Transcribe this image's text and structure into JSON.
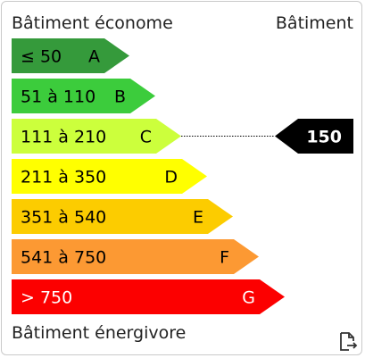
{
  "header": {
    "title": "Bâtiment économe",
    "column_title": "Bâtiment"
  },
  "footer": {
    "label": "Bâtiment énergivore"
  },
  "chart_data": {
    "type": "bar",
    "title": "Bâtiment économe",
    "categories": [
      "≤ 50",
      "51 à 110",
      "111 à 210",
      "211 à 350",
      "351 à 540",
      "541 à 750",
      "> 750"
    ],
    "classes": [
      "A",
      "B",
      "C",
      "D",
      "E",
      "F",
      "G"
    ],
    "colors": [
      "#359a3b",
      "#3ccc3c",
      "#ccff3c",
      "#ffff00",
      "#fccc00",
      "#fc9933",
      "#fc0000"
    ],
    "label_colors": [
      "#000000",
      "#000000",
      "#000000",
      "#000000",
      "#000000",
      "#000000",
      "#ffffff"
    ],
    "indicator": {
      "value": 150,
      "class": "C",
      "label": "150"
    }
  },
  "icons": {
    "export": "export-icon"
  }
}
